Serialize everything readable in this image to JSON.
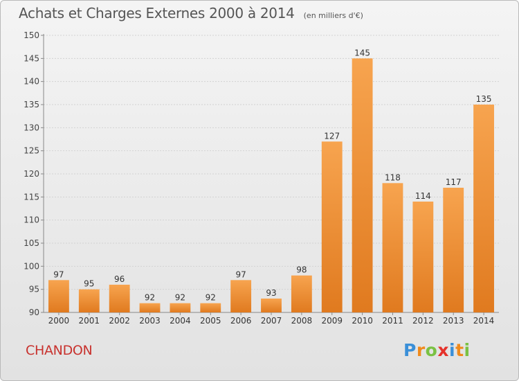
{
  "chart_data": {
    "type": "bar",
    "title": "Achats et Charges Externes 2000 à 2014",
    "subtitle": "(en milliers d'€)",
    "categories": [
      "2000",
      "2001",
      "2002",
      "2003",
      "2004",
      "2005",
      "2006",
      "2007",
      "2008",
      "2009",
      "2010",
      "2011",
      "2012",
      "2013",
      "2014"
    ],
    "values": [
      97,
      95,
      96,
      92,
      92,
      92,
      97,
      93,
      98,
      127,
      145,
      118,
      114,
      117,
      135
    ],
    "ylim": [
      90,
      150
    ],
    "yticks": [
      90,
      95,
      100,
      105,
      110,
      115,
      120,
      125,
      130,
      135,
      140,
      145,
      150
    ],
    "grid": true,
    "bar_color_light": "#f7a44f",
    "bar_color_dark": "#e07a1f"
  },
  "place": "CHANDON",
  "logo": {
    "letters": [
      "P",
      "r",
      "o",
      "x",
      "i",
      "t",
      "i"
    ],
    "colors": [
      "#3a8fd8",
      "#f08a1c",
      "#7ac143",
      "#e5322b",
      "#3a8fd8",
      "#f08a1c",
      "#7ac143"
    ]
  }
}
